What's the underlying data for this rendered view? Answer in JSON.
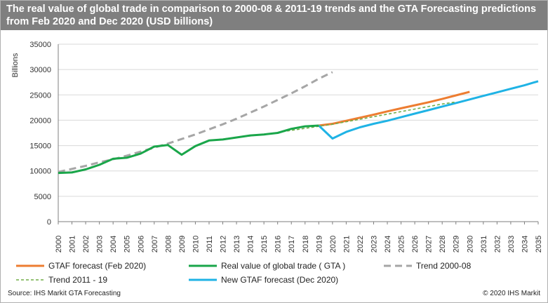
{
  "title": "The real value of global trade in comparison to 2000-08 & 2011-19 trends and the GTA Forecasting predictions from Feb 2020 and Dec 2020  (USD billions)",
  "source": "Source: IHS Markit GTA Forecasting",
  "copyright": "© 2020 IHS Markit",
  "colors": {
    "gtaf_feb_2020": "#ed7d31",
    "real_gta": "#1aa64a",
    "trend_2000_08": "#a6a6a6",
    "trend_2011_19": "#70ad47",
    "new_gtaf_dec_2020": "#1fb3e5",
    "title_bar": "#7f7f7f"
  },
  "chart_data": {
    "type": "line",
    "ylabel": "Billions",
    "xlabel": "",
    "ylim": [
      0,
      35000
    ],
    "yticks": [
      0,
      5000,
      10000,
      15000,
      20000,
      25000,
      30000,
      35000
    ],
    "xlim": [
      2000,
      2035
    ],
    "xticks": [
      2000,
      2001,
      2002,
      2003,
      2004,
      2005,
      2006,
      2007,
      2008,
      2009,
      2010,
      2011,
      2012,
      2013,
      2014,
      2015,
      2016,
      2017,
      2018,
      2019,
      2020,
      2021,
      2022,
      2023,
      2024,
      2025,
      2026,
      2027,
      2028,
      2029,
      2030,
      2031,
      2032,
      2033,
      2034,
      2035
    ],
    "grid": "horizontal",
    "legend_position": "bottom",
    "series": [
      {
        "name": "GTAF forecast (Feb 2020)",
        "color": "#ed7d31",
        "style": "solid",
        "x": [
          2019,
          2020,
          2021,
          2022,
          2023,
          2024,
          2025,
          2026,
          2027,
          2028,
          2029,
          2030
        ],
        "y": [
          18950,
          19300,
          19900,
          20500,
          21100,
          21750,
          22350,
          22950,
          23550,
          24200,
          24900,
          25600
        ]
      },
      {
        "name": "Real value of global trade ( GTA )",
        "color": "#1aa64a",
        "style": "solid",
        "x": [
          2000,
          2001,
          2002,
          2003,
          2004,
          2005,
          2006,
          2007,
          2008,
          2009,
          2010,
          2011,
          2012,
          2013,
          2014,
          2015,
          2016,
          2017,
          2018,
          2019
        ],
        "y": [
          9600,
          9700,
          10300,
          11200,
          12400,
          12600,
          13400,
          14800,
          15100,
          13200,
          14900,
          16000,
          16200,
          16600,
          17000,
          17200,
          17500,
          18300,
          18800,
          18950
        ]
      },
      {
        "name": "Trend 2000-08",
        "color": "#a6a6a6",
        "style": "dashed",
        "x": [
          2000,
          2001,
          2002,
          2003,
          2004,
          2005,
          2006,
          2007,
          2008,
          2009,
          2010,
          2011,
          2012,
          2013,
          2014,
          2015,
          2016,
          2017,
          2018,
          2019,
          2020
        ],
        "y": [
          9800,
          10400,
          11000,
          11700,
          12300,
          13000,
          13800,
          14600,
          15400,
          16300,
          17200,
          18200,
          19200,
          20300,
          21500,
          22700,
          24000,
          25300,
          26700,
          28200,
          29500
        ]
      },
      {
        "name": "Trend 2011 - 19",
        "color": "#70ad47",
        "style": "dotted",
        "x": [
          2011,
          2012,
          2013,
          2014,
          2015,
          2016,
          2017,
          2018,
          2019,
          2020,
          2021,
          2022,
          2023,
          2024,
          2025,
          2026,
          2027,
          2028,
          2029
        ],
        "y": [
          16000,
          16300,
          16600,
          16900,
          17200,
          17600,
          18000,
          18400,
          18800,
          19200,
          19700,
          20200,
          20700,
          21200,
          21700,
          22200,
          22700,
          23200,
          23600
        ]
      },
      {
        "name": "New GTAF forecast (Dec 2020)",
        "color": "#1fb3e5",
        "style": "solid",
        "x": [
          2019,
          2020,
          2021,
          2022,
          2023,
          2024,
          2025,
          2026,
          2027,
          2028,
          2029,
          2030,
          2031,
          2032,
          2033,
          2034,
          2035
        ],
        "y": [
          18950,
          16400,
          17700,
          18600,
          19300,
          19900,
          20600,
          21300,
          22000,
          22700,
          23400,
          24100,
          24800,
          25500,
          26200,
          26900,
          27700
        ]
      }
    ],
    "legend": [
      {
        "series": 0,
        "label": "GTAF forecast (Feb 2020)"
      },
      {
        "series": 1,
        "label": "Real value of global trade ( GTA )"
      },
      {
        "series": 2,
        "label": "Trend 2000-08"
      },
      {
        "series": 3,
        "label": "Trend 2011 - 19"
      },
      {
        "series": 4,
        "label": "New GTAF forecast (Dec 2020)"
      }
    ]
  }
}
